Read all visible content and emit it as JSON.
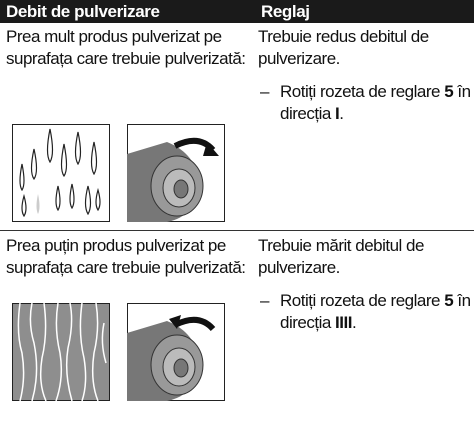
{
  "table": {
    "headers": [
      "Debit de pulverizare",
      "Reglaj"
    ],
    "rows": [
      {
        "problem": "Prea mult produs pulverizat pe suprafața care trebuie pulverizată:",
        "remedy": "Trebuie redus debitul de pulverizare.",
        "marker": "–",
        "step": [
          "Rotiți rozeta de reglare ",
          "5",
          " în direcția ",
          "I",
          "."
        ]
      },
      {
        "problem": "Prea puțin produs pulverizat pe suprafața care trebuie pulverizată:",
        "remedy": "Trebuie mărit debitul de pulverizare.",
        "marker": "–",
        "step": [
          "Rotiți rozeta de reglare ",
          "5",
          " în direcția ",
          "IIII",
          "."
        ]
      }
    ]
  }
}
